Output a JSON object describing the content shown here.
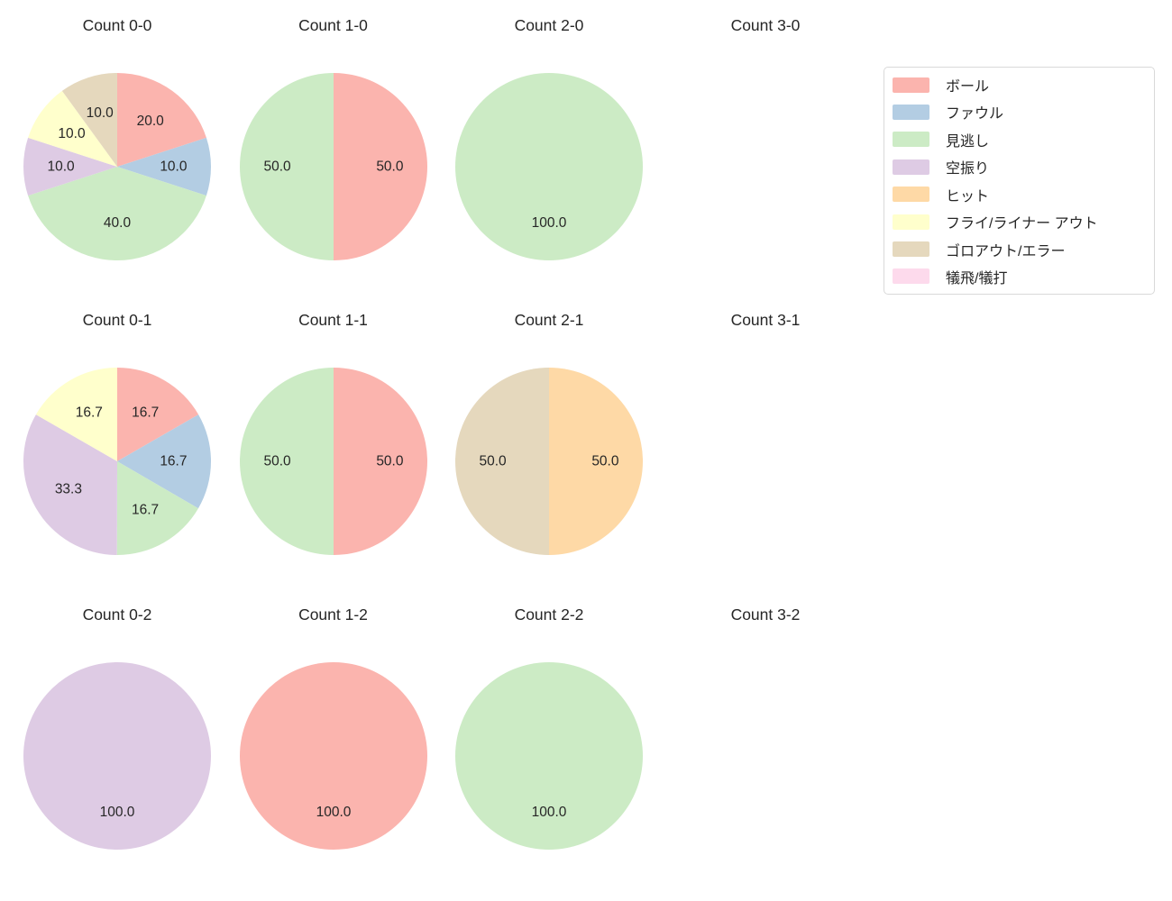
{
  "legend": {
    "items": [
      {
        "label": "ボール",
        "color": "#fbb4ae"
      },
      {
        "label": "ファウル",
        "color": "#b3cde3"
      },
      {
        "label": "見逃し",
        "color": "#ccebc5"
      },
      {
        "label": "空振り",
        "color": "#decbe4"
      },
      {
        "label": "ヒット",
        "color": "#fed9a6"
      },
      {
        "label": "フライ/ライナー アウト",
        "color": "#ffffcc"
      },
      {
        "label": "ゴロアウト/エラー",
        "color": "#e5d8bd"
      },
      {
        "label": "犠飛/犠打",
        "color": "#fddaec"
      }
    ]
  },
  "chart_data": [
    {
      "type": "pie",
      "title": "Count 0-0",
      "start_angle_deg": 0,
      "direction": "clockwise",
      "slices": [
        {
          "label": "ボール",
          "value": 20.0,
          "text": "20.0"
        },
        {
          "label": "ファウル",
          "value": 10.0,
          "text": "10.0"
        },
        {
          "label": "見逃し",
          "value": 40.0,
          "text": "40.0"
        },
        {
          "label": "空振り",
          "value": 10.0,
          "text": "10.0"
        },
        {
          "label": "フライ/ライナー アウト",
          "value": 10.0,
          "text": "10.0"
        },
        {
          "label": "ゴロアウト/エラー",
          "value": 10.0,
          "text": "10.0"
        }
      ]
    },
    {
      "type": "pie",
      "title": "Count 1-0",
      "start_angle_deg": 0,
      "direction": "clockwise",
      "slices": [
        {
          "label": "ボール",
          "value": 50.0,
          "text": "50.0"
        },
        {
          "label": "見逃し",
          "value": 50.0,
          "text": "50.0"
        }
      ]
    },
    {
      "type": "pie",
      "title": "Count 2-0",
      "start_angle_deg": 0,
      "direction": "clockwise",
      "slices": [
        {
          "label": "見逃し",
          "value": 100.0,
          "text": "100.0"
        }
      ]
    },
    {
      "type": "pie",
      "title": "Count 3-0",
      "start_angle_deg": 0,
      "direction": "clockwise",
      "slices": []
    },
    {
      "type": "pie",
      "title": "Count 0-1",
      "start_angle_deg": 0,
      "direction": "clockwise",
      "slices": [
        {
          "label": "ボール",
          "value": 16.7,
          "text": "16.7"
        },
        {
          "label": "ファウル",
          "value": 16.7,
          "text": "16.7"
        },
        {
          "label": "見逃し",
          "value": 16.7,
          "text": "16.7"
        },
        {
          "label": "空振り",
          "value": 33.3,
          "text": "33.3"
        },
        {
          "label": "フライ/ライナー アウト",
          "value": 16.7,
          "text": "16.7"
        }
      ]
    },
    {
      "type": "pie",
      "title": "Count 1-1",
      "start_angle_deg": 0,
      "direction": "clockwise",
      "slices": [
        {
          "label": "ボール",
          "value": 50.0,
          "text": "50.0"
        },
        {
          "label": "見逃し",
          "value": 50.0,
          "text": "50.0"
        }
      ]
    },
    {
      "type": "pie",
      "title": "Count 2-1",
      "start_angle_deg": 0,
      "direction": "clockwise",
      "slices": [
        {
          "label": "ヒット",
          "value": 50.0,
          "text": "50.0"
        },
        {
          "label": "ゴロアウト/エラー",
          "value": 50.0,
          "text": "50.0"
        }
      ]
    },
    {
      "type": "pie",
      "title": "Count 3-1",
      "start_angle_deg": 0,
      "direction": "clockwise",
      "slices": []
    },
    {
      "type": "pie",
      "title": "Count 0-2",
      "start_angle_deg": 0,
      "direction": "clockwise",
      "slices": [
        {
          "label": "空振り",
          "value": 100.0,
          "text": "100.0"
        }
      ]
    },
    {
      "type": "pie",
      "title": "Count 1-2",
      "start_angle_deg": 0,
      "direction": "clockwise",
      "slices": [
        {
          "label": "ボール",
          "value": 100.0,
          "text": "100.0"
        }
      ]
    },
    {
      "type": "pie",
      "title": "Count 2-2",
      "start_angle_deg": 0,
      "direction": "clockwise",
      "slices": [
        {
          "label": "見逃し",
          "value": 100.0,
          "text": "100.0"
        }
      ]
    },
    {
      "type": "pie",
      "title": "Count 3-2",
      "start_angle_deg": 0,
      "direction": "clockwise",
      "slices": []
    }
  ]
}
